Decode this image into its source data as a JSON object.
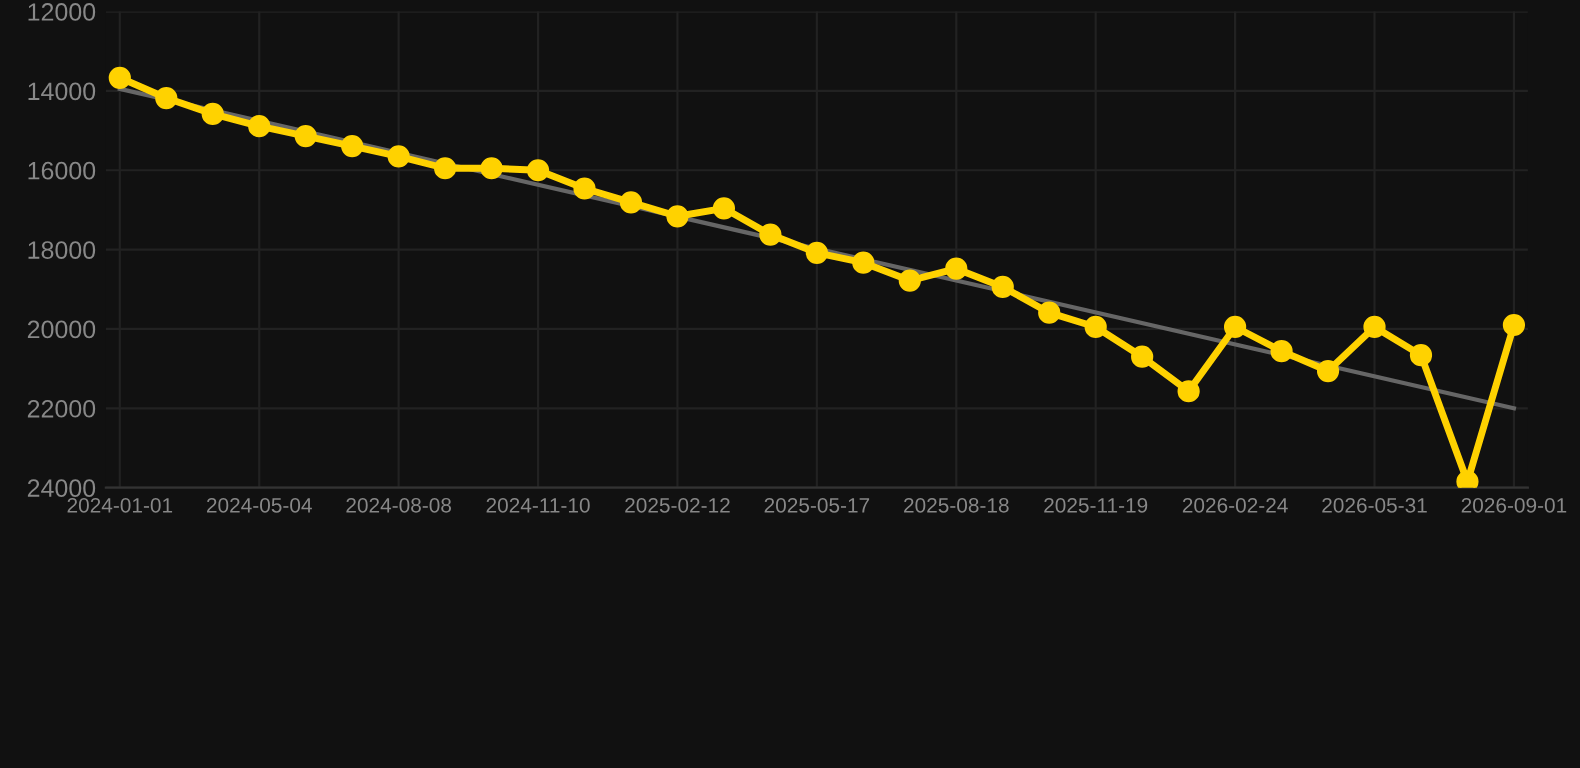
{
  "chart_data": {
    "type": "line",
    "categories": [
      "2024-01-01",
      null,
      null,
      "2024-05-04",
      null,
      null,
      "2024-08-08",
      null,
      null,
      "2024-11-10",
      null,
      null,
      "2025-02-12",
      null,
      null,
      "2025-05-17",
      null,
      null,
      "2025-08-18",
      null,
      null,
      "2025-11-19",
      null,
      null,
      "2026-02-24",
      null,
      null,
      "2026-05-31",
      null,
      null,
      "2026-09-01"
    ],
    "series": [
      {
        "color": "#666666",
        "values": [
          13950,
          null,
          null,
          null,
          null,
          null,
          null,
          null,
          null,
          null,
          null,
          null,
          null,
          null,
          null,
          null,
          null,
          null,
          null,
          null,
          null,
          null,
          null,
          null,
          null,
          null,
          null,
          null,
          null,
          null,
          22000
        ],
        "marker": "none"
      },
      {
        "color": "#ffd200",
        "marker": "circle",
        "values": [
          13670,
          14180,
          14580,
          14890,
          15140,
          15390,
          15650,
          15950,
          15950,
          16000,
          16460,
          16810,
          17160,
          16960,
          17620,
          18080,
          18330,
          18780,
          18480,
          18940,
          19590,
          19950,
          20700,
          21570,
          19950,
          20560,
          21060,
          19950,
          20660,
          23850,
          19900
        ]
      }
    ],
    "ylim": [
      24000,
      12000
    ],
    "yticks": [
      12000,
      14000,
      16000,
      18000,
      20000,
      22000,
      24000
    ],
    "grid": true,
    "line_style": "solid"
  }
}
